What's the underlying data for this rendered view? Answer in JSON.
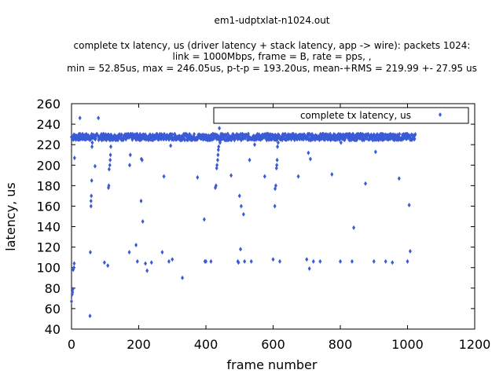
{
  "chart_data": {
    "type": "scatter",
    "title_lines": [
      "em1-udptxlat-n1024.out",
      "",
      "complete tx latency, us (driver latency + stack latency, app -> wire): packets 1024:",
      "link = 1000Mbps, frame = B, rate = pps, ,",
      "min = 52.85us, max = 246.05us, p-t-p = 193.20us, mean-+RMS = 219.99 +- 27.95 us"
    ],
    "xlabel": "frame number",
    "ylabel": "latency, us",
    "xlim": [
      0,
      1200
    ],
    "ylim": [
      40,
      260
    ],
    "xticks": [
      "0",
      "200",
      "400",
      "600",
      "800",
      "1000",
      "1200"
    ],
    "yticks": [
      "40",
      "60",
      "80",
      "100",
      "120",
      "140",
      "160",
      "180",
      "200",
      "220",
      "240",
      "260"
    ],
    "grid": false,
    "legend_position": "top-right",
    "series": [
      {
        "name": "complete tx latency, us",
        "color": "#3b5bd6",
        "marker": "diamond",
        "band": {
          "x_from": 0,
          "x_to": 1023,
          "y_center": 227.5,
          "y_spread": 3
        },
        "points": [
          [
            0,
            67
          ],
          [
            2,
            74
          ],
          [
            3,
            76
          ],
          [
            4,
            79
          ],
          [
            5,
            98
          ],
          [
            7,
            100
          ],
          [
            8,
            104
          ],
          [
            9,
            207
          ],
          [
            25,
            246
          ],
          [
            55,
            52.85
          ],
          [
            56,
            115
          ],
          [
            58,
            160
          ],
          [
            58,
            165
          ],
          [
            59,
            170
          ],
          [
            60,
            185
          ],
          [
            61,
            218
          ],
          [
            62,
            222
          ],
          [
            70,
            199
          ],
          [
            80,
            246.05
          ],
          [
            98,
            105
          ],
          [
            108,
            102
          ],
          [
            110,
            178
          ],
          [
            111,
            180
          ],
          [
            112,
            196
          ],
          [
            114,
            200
          ],
          [
            115,
            205
          ],
          [
            116,
            210
          ],
          [
            117,
            218
          ],
          [
            172,
            115
          ],
          [
            173,
            200
          ],
          [
            175,
            210
          ],
          [
            192,
            122
          ],
          [
            196,
            106
          ],
          [
            207,
            165
          ],
          [
            208,
            206
          ],
          [
            210,
            205
          ],
          [
            212,
            145
          ],
          [
            220,
            104
          ],
          [
            225,
            97
          ],
          [
            238,
            105
          ],
          [
            270,
            115
          ],
          [
            275,
            189
          ],
          [
            290,
            106
          ],
          [
            295,
            219
          ],
          [
            300,
            108
          ],
          [
            330,
            90
          ],
          [
            375,
            188
          ],
          [
            395,
            147
          ],
          [
            397,
            106
          ],
          [
            400,
            106
          ],
          [
            415,
            106
          ],
          [
            428,
            178
          ],
          [
            430,
            180
          ],
          [
            432,
            197
          ],
          [
            433,
            200
          ],
          [
            435,
            205
          ],
          [
            436,
            210
          ],
          [
            437,
            215
          ],
          [
            438,
            218
          ],
          [
            440,
            236
          ],
          [
            442,
            222
          ],
          [
            450,
            246
          ],
          [
            475,
            190
          ],
          [
            495,
            106
          ],
          [
            497,
            105
          ],
          [
            500,
            170
          ],
          [
            503,
            118
          ],
          [
            505,
            160
          ],
          [
            512,
            152
          ],
          [
            515,
            106
          ],
          [
            530,
            205
          ],
          [
            535,
            106
          ],
          [
            545,
            220
          ],
          [
            575,
            189
          ],
          [
            600,
            108
          ],
          [
            605,
            160
          ],
          [
            606,
            177
          ],
          [
            608,
            180
          ],
          [
            610,
            197
          ],
          [
            611,
            200
          ],
          [
            612,
            205
          ],
          [
            613,
            218
          ],
          [
            615,
            222
          ],
          [
            620,
            106
          ],
          [
            675,
            189
          ],
          [
            700,
            108
          ],
          [
            705,
            212
          ],
          [
            708,
            99
          ],
          [
            711,
            206
          ],
          [
            720,
            106
          ],
          [
            740,
            106
          ],
          [
            775,
            191
          ],
          [
            800,
            106
          ],
          [
            802,
            222
          ],
          [
            835,
            106
          ],
          [
            840,
            139
          ],
          [
            875,
            182
          ],
          [
            900,
            106
          ],
          [
            905,
            213
          ],
          [
            935,
            106
          ],
          [
            955,
            105
          ],
          [
            975,
            187
          ],
          [
            1000,
            106
          ],
          [
            1005,
            161
          ],
          [
            1008,
            116
          ]
        ]
      }
    ]
  }
}
